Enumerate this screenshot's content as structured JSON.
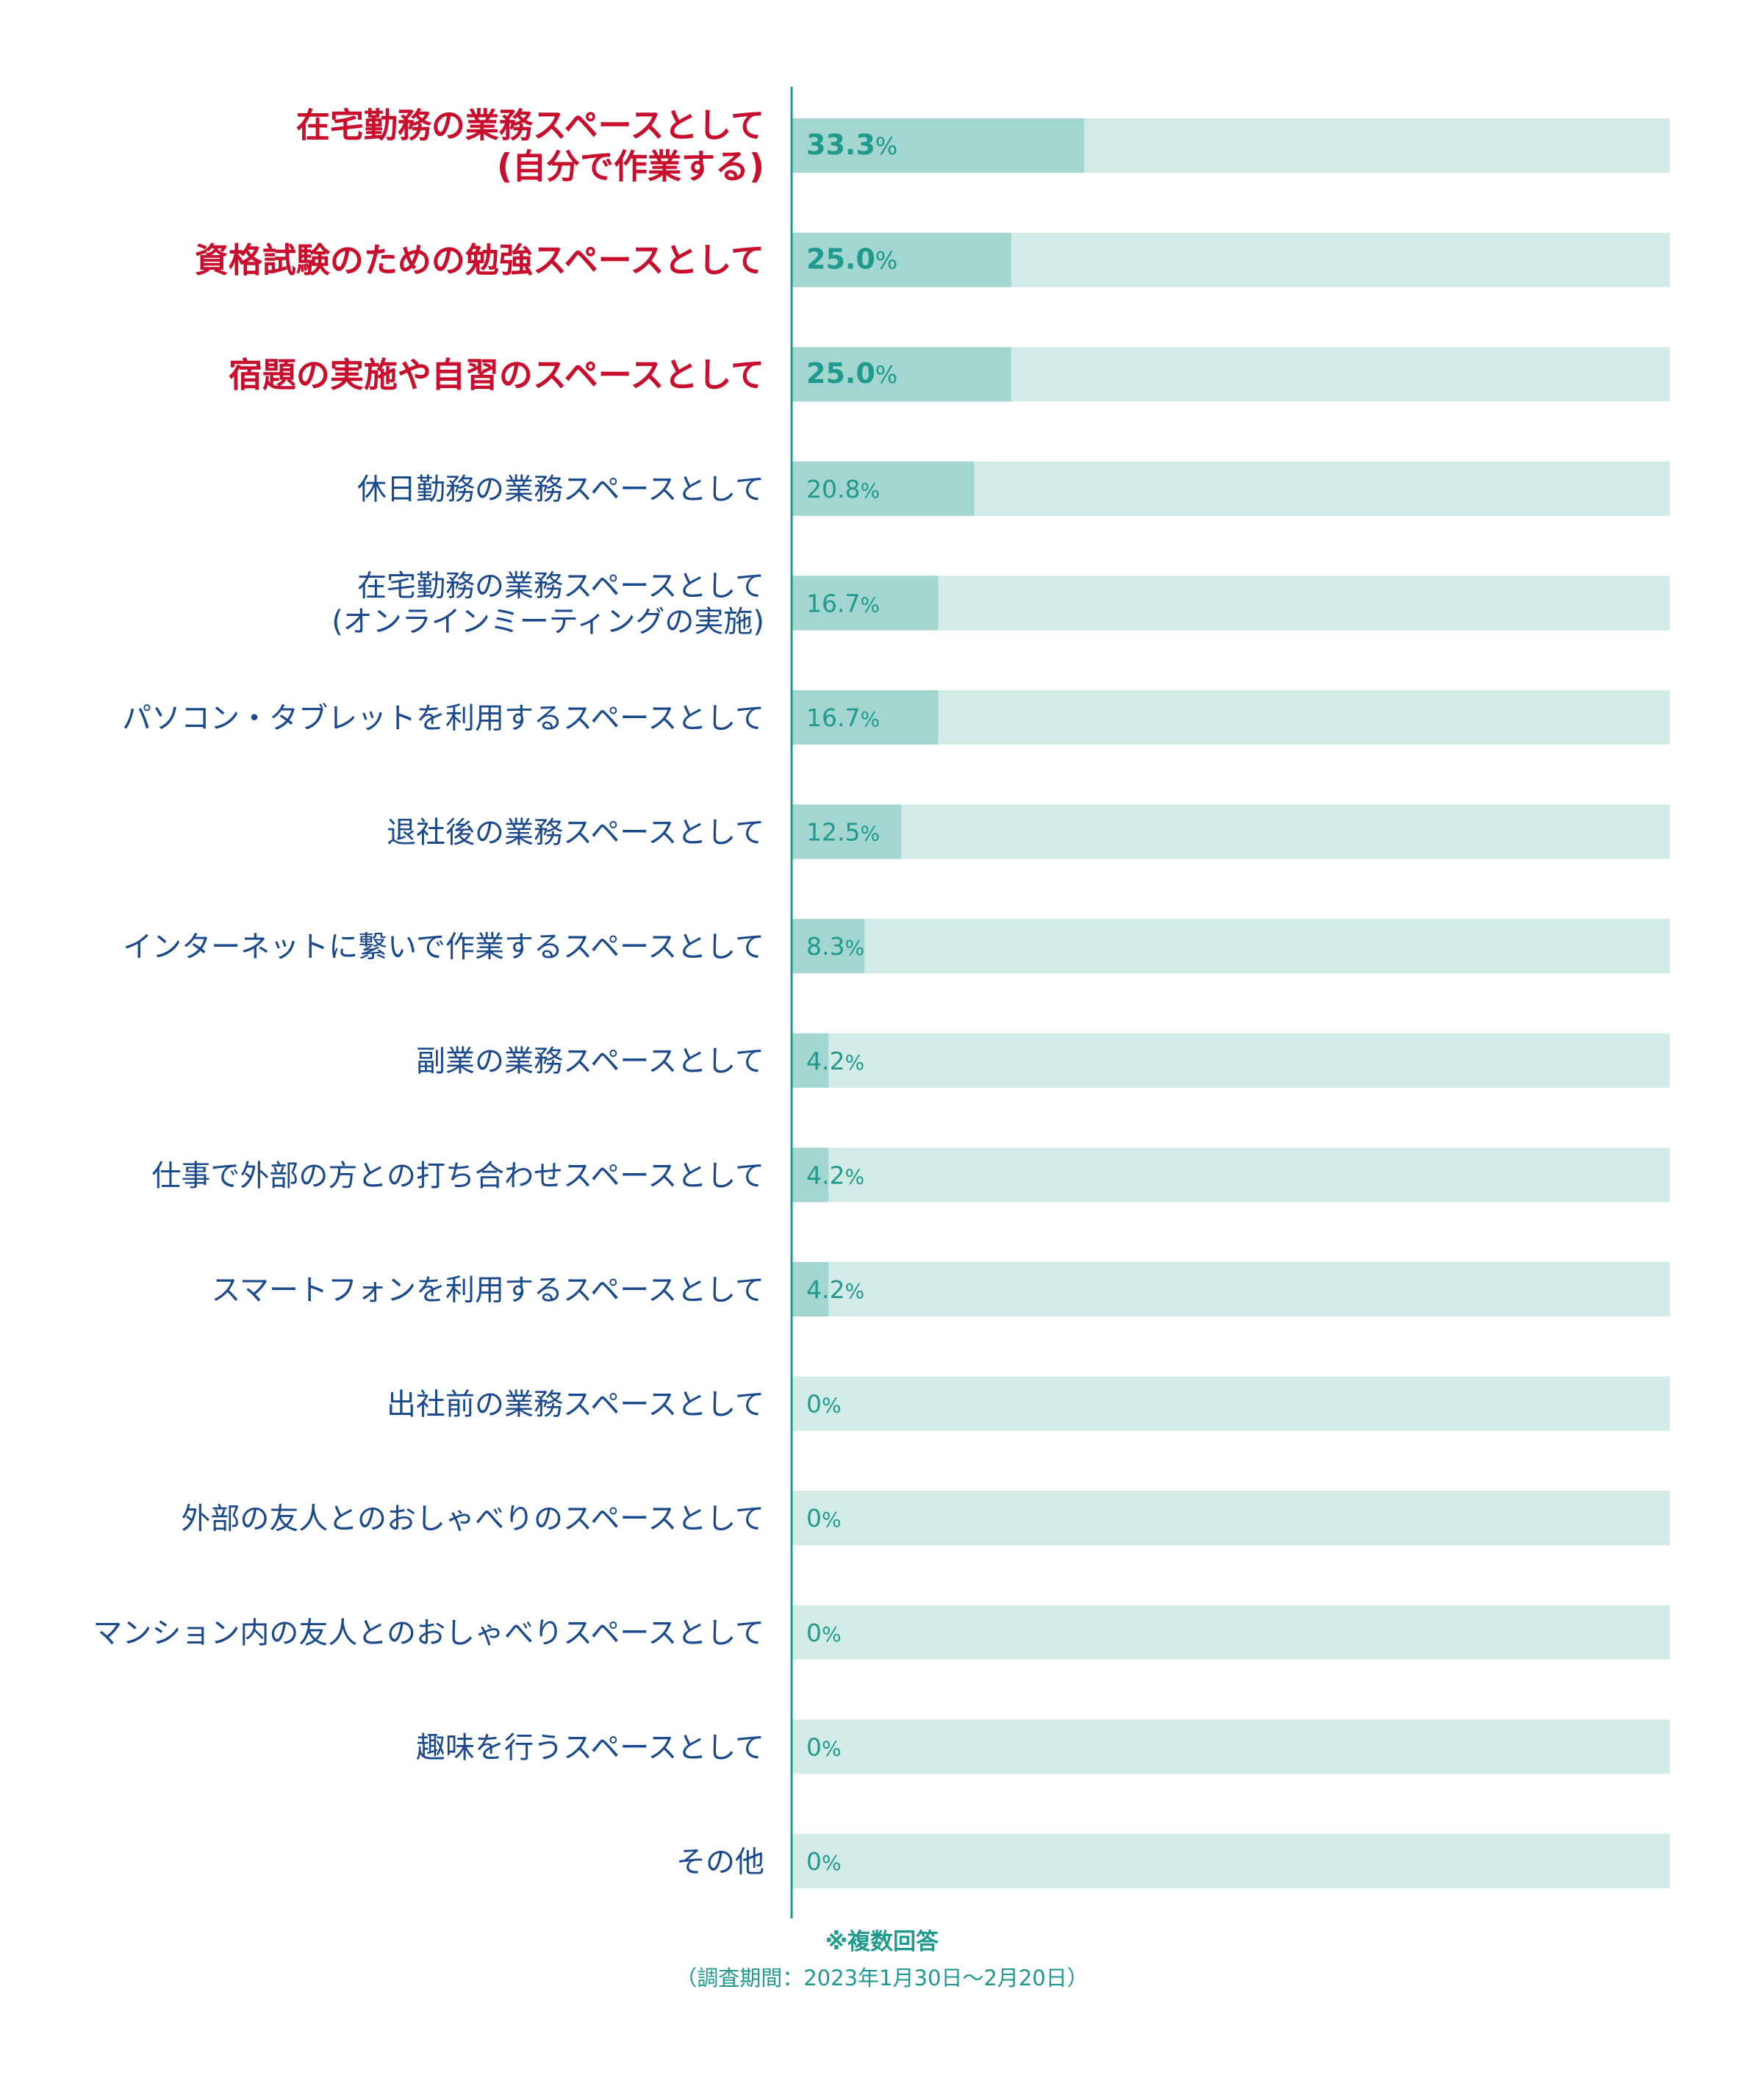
{
  "chart_data": {
    "type": "bar",
    "orientation": "horizontal",
    "categories": [
      [
        "在宅勤務の業務スペースとして",
        "(自分で作業する)"
      ],
      [
        "資格試験のための勉強スペースとして"
      ],
      [
        "宿題の実施や自習のスペースとして"
      ],
      [
        "休日勤務の業務スペースとして"
      ],
      [
        "在宅勤務の業務スペースとして",
        "(オンラインミーティングの実施)"
      ],
      [
        "パソコン・タブレットを利用するスペースとして"
      ],
      [
        "退社後の業務スペースとして"
      ],
      [
        "インターネットに繋いで作業するスペースとして"
      ],
      [
        "副業の業務スペースとして"
      ],
      [
        "仕事で外部の方との打ち合わせスペースとして"
      ],
      [
        "スマートフォンを利用するスペースとして"
      ],
      [
        "出社前の業務スペースとして"
      ],
      [
        "外部の友人とのおしゃべりのスペースとして"
      ],
      [
        "マンション内の友人とのおしゃべりスペースとして"
      ],
      [
        "趣味を行うスペースとして"
      ],
      [
        "その他"
      ]
    ],
    "values": [
      33.3,
      25.0,
      25.0,
      20.8,
      16.7,
      16.7,
      12.5,
      8.3,
      4.2,
      4.2,
      4.2,
      0,
      0,
      0,
      0,
      0
    ],
    "value_labels": [
      "33.3",
      "25.0",
      "25.0",
      "20.8",
      "16.7",
      "16.7",
      "12.5",
      "8.3",
      "4.2",
      "4.2",
      "4.2",
      "0",
      "0",
      "0",
      "0",
      "0"
    ],
    "unit": "%",
    "highlighted": [
      true,
      true,
      true,
      false,
      false,
      false,
      false,
      false,
      false,
      false,
      false,
      false,
      false,
      false,
      false,
      false
    ],
    "xlim": [
      0,
      100
    ],
    "grid": false,
    "colors": {
      "bar_fill": "#a3d6d0",
      "bar_track": "#d3ebe7",
      "value_text": "#1f9a8c",
      "label_highlight": "#c8102e",
      "label_normal": "#1b4a8c",
      "axis_line": "#1f9a8c"
    }
  },
  "footnote": {
    "line1": "※複数回答",
    "line2": "（調査期間：2023年1月30日〜2月20日）"
  }
}
